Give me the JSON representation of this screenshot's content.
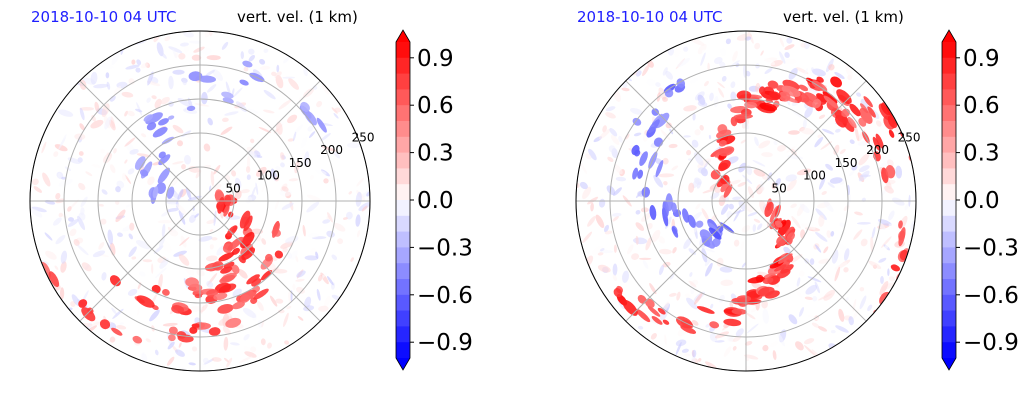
{
  "colors": {
    "positive": "#ff0000",
    "negative": "#0000ff",
    "neutral": "#ffffff",
    "date_text": "#1f1fff"
  },
  "panels": [
    {
      "id": "left",
      "date_label": "2018-10-10 04 UTC",
      "field_label": "vert. vel. (1 km)"
    },
    {
      "id": "right",
      "date_label": "2018-10-10 04 UTC",
      "field_label": "vert. vel. (1 km)"
    }
  ],
  "chart_data": [
    {
      "type": "heatmap",
      "projection": "polar",
      "title": "vert. vel. (1 km)",
      "time": "2018-10-10 04 UTC",
      "radial_ticks": [
        "50",
        "100",
        "150",
        "200",
        "250"
      ],
      "colorbar": {
        "ticks": [
          "−0.9",
          "−0.6",
          "−0.3",
          "0.0",
          "0.3",
          "0.6",
          "0.9"
        ],
        "vmin": -1.0,
        "vmax": 1.0,
        "extend": "both"
      },
      "grid": true
    },
    {
      "type": "heatmap",
      "projection": "polar",
      "title": "vert. vel. (1 km)",
      "time": "2018-10-10 04 UTC",
      "radial_ticks": [
        "50",
        "100",
        "150",
        "200",
        "250"
      ],
      "colorbar": {
        "ticks": [
          "−0.9",
          "−0.6",
          "−0.3",
          "0.0",
          "0.3",
          "0.6",
          "0.9"
        ],
        "vmin": -1.0,
        "vmax": 1.0,
        "extend": "both"
      },
      "grid": true
    }
  ]
}
